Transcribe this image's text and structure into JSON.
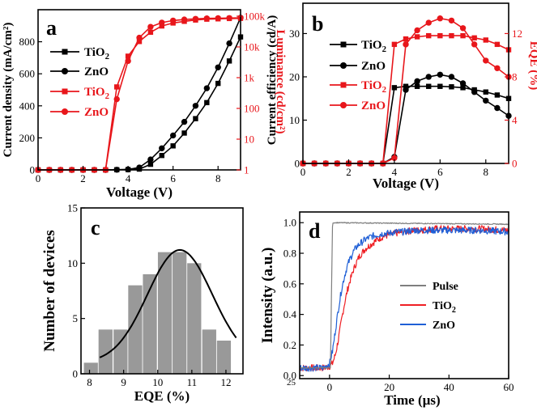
{
  "chart_data": [
    {
      "panel": "a",
      "type": "line",
      "xlabel": "Voltage (V)",
      "ylabel_left": "Current density (mA/cm²)",
      "ylabel_right": "Luminance (cd/cm²)",
      "xlim": [
        0,
        9
      ],
      "ylim_left": [
        0,
        1000
      ],
      "ylim_right_log": [
        1,
        100000
      ],
      "x_ticks": [
        "0",
        "2",
        "4",
        "6",
        "8"
      ],
      "y_ticks_left": [
        "0",
        "200",
        "400",
        "600",
        "800"
      ],
      "y_ticks_right": [
        "1",
        "10",
        "100",
        "1k",
        "10k",
        "100k"
      ],
      "legend": [
        "TiO₂",
        "ZnO",
        "TiO₂",
        "ZnO"
      ],
      "series": [
        {
          "name": "TiO2 J",
          "axis": "left",
          "color": "#000000",
          "marker": "square",
          "x": [
            0,
            0.5,
            1,
            1.5,
            2,
            2.5,
            3,
            3.5,
            4,
            4.5,
            5,
            5.5,
            6,
            6.5,
            7,
            7.5,
            8,
            8.5,
            9
          ],
          "values": [
            0,
            0,
            0,
            0,
            0,
            0,
            0,
            1,
            2,
            5,
            35,
            90,
            150,
            230,
            320,
            420,
            540,
            680,
            830
          ]
        },
        {
          "name": "ZnO J",
          "axis": "left",
          "color": "#000000",
          "marker": "circle",
          "x": [
            0,
            0.5,
            1,
            1.5,
            2,
            2.5,
            3,
            3.5,
            4,
            4.5,
            5,
            5.5,
            6,
            6.5,
            7,
            7.5,
            8,
            8.5,
            9
          ],
          "values": [
            0,
            0,
            0,
            0,
            0,
            0,
            0,
            1,
            3,
            15,
            65,
            135,
            215,
            300,
            400,
            510,
            640,
            790,
            950
          ]
        },
        {
          "name": "TiO2 L",
          "axis": "right",
          "color": "#e8161b",
          "marker": "square",
          "x": [
            0,
            0.5,
            1,
            1.5,
            2,
            2.5,
            3,
            3.5,
            4,
            4.5,
            5,
            5.5,
            6,
            6.5,
            7,
            7.5,
            8,
            8.5,
            9
          ],
          "values": [
            1,
            1,
            1,
            1,
            1,
            1,
            1,
            500,
            5000,
            15000,
            30000,
            48000,
            60000,
            68000,
            75000,
            80000,
            82000,
            84000,
            85000
          ]
        },
        {
          "name": "ZnO L",
          "axis": "right",
          "color": "#e8161b",
          "marker": "circle",
          "x": [
            0,
            0.5,
            1,
            1.5,
            2,
            2.5,
            3,
            3.5,
            4,
            4.5,
            5,
            5.5,
            6,
            6.5,
            7,
            7.5,
            8,
            8.5,
            9
          ],
          "values": [
            1,
            1,
            1,
            1,
            1,
            1,
            1,
            200,
            3500,
            20000,
            45000,
            62000,
            72000,
            78000,
            82000,
            85000,
            86000,
            87000,
            88000
          ]
        }
      ]
    },
    {
      "panel": "b",
      "type": "line",
      "xlabel": "Voltage (V)",
      "ylabel_left": "Current efficiency (cd/A)",
      "ylabel_right": "EQE (%)",
      "xlim": [
        0,
        9
      ],
      "ylim_left": [
        0,
        37
      ],
      "ylim_right": [
        0,
        14.8
      ],
      "x_ticks": [
        "0",
        "2",
        "4",
        "6",
        "8"
      ],
      "y_ticks_left": [
        "0",
        "10",
        "20",
        "30"
      ],
      "y_ticks_right": [
        "0",
        "4",
        "8",
        "12"
      ],
      "legend": [
        "TiO₂",
        "ZnO",
        "TiO₂",
        "ZnO"
      ],
      "series": [
        {
          "name": "TiO2 CE",
          "axis": "left",
          "color": "#000000",
          "marker": "square",
          "x": [
            0,
            0.5,
            1,
            1.5,
            2,
            2.5,
            3,
            3.5,
            4,
            4.5,
            5,
            5.5,
            6,
            6.5,
            7,
            7.5,
            8,
            8.5,
            9
          ],
          "values": [
            0,
            0,
            0,
            0,
            0,
            0,
            0,
            0,
            17.5,
            17.8,
            17.8,
            17.8,
            17.8,
            17.7,
            17.5,
            17,
            16.5,
            15.8,
            15
          ]
        },
        {
          "name": "ZnO CE",
          "axis": "left",
          "color": "#000000",
          "marker": "circle",
          "x": [
            0,
            0.5,
            1,
            1.5,
            2,
            2.5,
            3,
            3.5,
            4,
            4.5,
            5,
            5.5,
            6,
            6.5,
            7,
            7.5,
            8,
            8.5,
            9
          ],
          "values": [
            0,
            0,
            0,
            0,
            0,
            0,
            0,
            0,
            1.5,
            17,
            19,
            20,
            20.5,
            20,
            18.5,
            16.5,
            14.5,
            12.8,
            11
          ]
        },
        {
          "name": "TiO2 EQE",
          "axis": "right",
          "color": "#e8161b",
          "marker": "square",
          "x": [
            0,
            0.5,
            1,
            1.5,
            2,
            2.5,
            3,
            3.5,
            4,
            4.5,
            5,
            5.5,
            6,
            6.5,
            7,
            7.5,
            8,
            8.5,
            9
          ],
          "values": [
            0,
            0,
            0,
            0,
            0,
            0,
            0,
            0,
            11,
            11.5,
            11.7,
            11.8,
            11.8,
            11.8,
            11.8,
            11.6,
            11.4,
            11,
            10.5
          ]
        },
        {
          "name": "ZnO EQE",
          "axis": "right",
          "color": "#e8161b",
          "marker": "circle",
          "x": [
            0,
            0.5,
            1,
            1.5,
            2,
            2.5,
            3,
            3.5,
            4,
            4.5,
            5,
            5.5,
            6,
            6.5,
            7,
            7.5,
            8,
            8.5,
            9
          ],
          "values": [
            0,
            0,
            0,
            0,
            0,
            0,
            0,
            0,
            0.5,
            11,
            12.3,
            13,
            13.4,
            13.2,
            12.5,
            11,
            9.5,
            8.8,
            8
          ]
        }
      ]
    },
    {
      "panel": "c",
      "type": "bar",
      "xlabel": "EQE (%)",
      "ylabel": "Number of devices",
      "xlim": [
        7.75,
        12.5
      ],
      "ylim": [
        0,
        15
      ],
      "x_ticks": [
        "8",
        "9",
        "10",
        "11",
        "12"
      ],
      "y_ticks": [
        "0",
        "5",
        "10",
        "15"
      ],
      "bin_width": 0.44,
      "bin_centers": [
        8.04,
        8.47,
        8.91,
        9.34,
        9.77,
        10.21,
        10.64,
        11.07,
        11.51,
        11.94
      ],
      "values": [
        1,
        4,
        4,
        8,
        9,
        11,
        11,
        10,
        4,
        3
      ],
      "fit": {
        "type": "gaussian",
        "mean": 10.65,
        "sigma": 0.95,
        "amplitude": 11.2,
        "offset": 1.0,
        "x_range": [
          8.3,
          12.3
        ]
      }
    },
    {
      "panel": "d",
      "type": "line",
      "xlabel": "Time (µs)",
      "ylabel": "Intensity (a.u.)",
      "xlim": [
        -10,
        60
      ],
      "ylim": [
        -0.02,
        1.07
      ],
      "x_ticks": [
        "0",
        "20",
        "40",
        "60"
      ],
      "y_ticks": [
        "0.0",
        "0.2",
        "0.4",
        "0.6",
        "0.8",
        "1.0"
      ],
      "corner_note": "25",
      "legend": [
        "Pulse",
        "TiO₂",
        "ZnO"
      ],
      "series": [
        {
          "name": "Pulse",
          "color": "#7f7f7f",
          "x": [
            -10,
            0.3,
            1.0,
            60
          ],
          "values": [
            0.05,
            0.05,
            1.0,
            0.99
          ]
        },
        {
          "name": "TiO2",
          "color": "#ef1f24",
          "x": [
            -10,
            -2,
            0,
            1,
            2,
            3,
            4,
            5,
            6,
            7,
            8,
            9,
            10,
            12,
            14,
            16,
            18,
            20,
            22,
            25,
            28,
            30,
            35,
            40,
            50,
            60
          ],
          "values": [
            0.05,
            0.05,
            0.06,
            0.08,
            0.14,
            0.24,
            0.36,
            0.47,
            0.56,
            0.63,
            0.69,
            0.74,
            0.78,
            0.83,
            0.86,
            0.89,
            0.91,
            0.92,
            0.93,
            0.94,
            0.95,
            0.95,
            0.96,
            0.96,
            0.96,
            0.95
          ]
        },
        {
          "name": "ZnO",
          "color": "#1f5fd6",
          "x": [
            -10,
            -2,
            0,
            1,
            2,
            3,
            4,
            5,
            6,
            7,
            8,
            9,
            10,
            12,
            14,
            16,
            18,
            20,
            22,
            25,
            28,
            30,
            35,
            40,
            50,
            60
          ],
          "values": [
            0.05,
            0.05,
            0.08,
            0.16,
            0.3,
            0.44,
            0.56,
            0.65,
            0.72,
            0.77,
            0.81,
            0.84,
            0.86,
            0.89,
            0.91,
            0.92,
            0.93,
            0.93,
            0.94,
            0.94,
            0.95,
            0.95,
            0.95,
            0.95,
            0.95,
            0.94
          ]
        }
      ]
    }
  ],
  "colors": {
    "black": "#000000",
    "red": "#e8161b",
    "bar": "#999999",
    "pulse": "#7f7f7f",
    "blue": "#1f5fd6"
  }
}
